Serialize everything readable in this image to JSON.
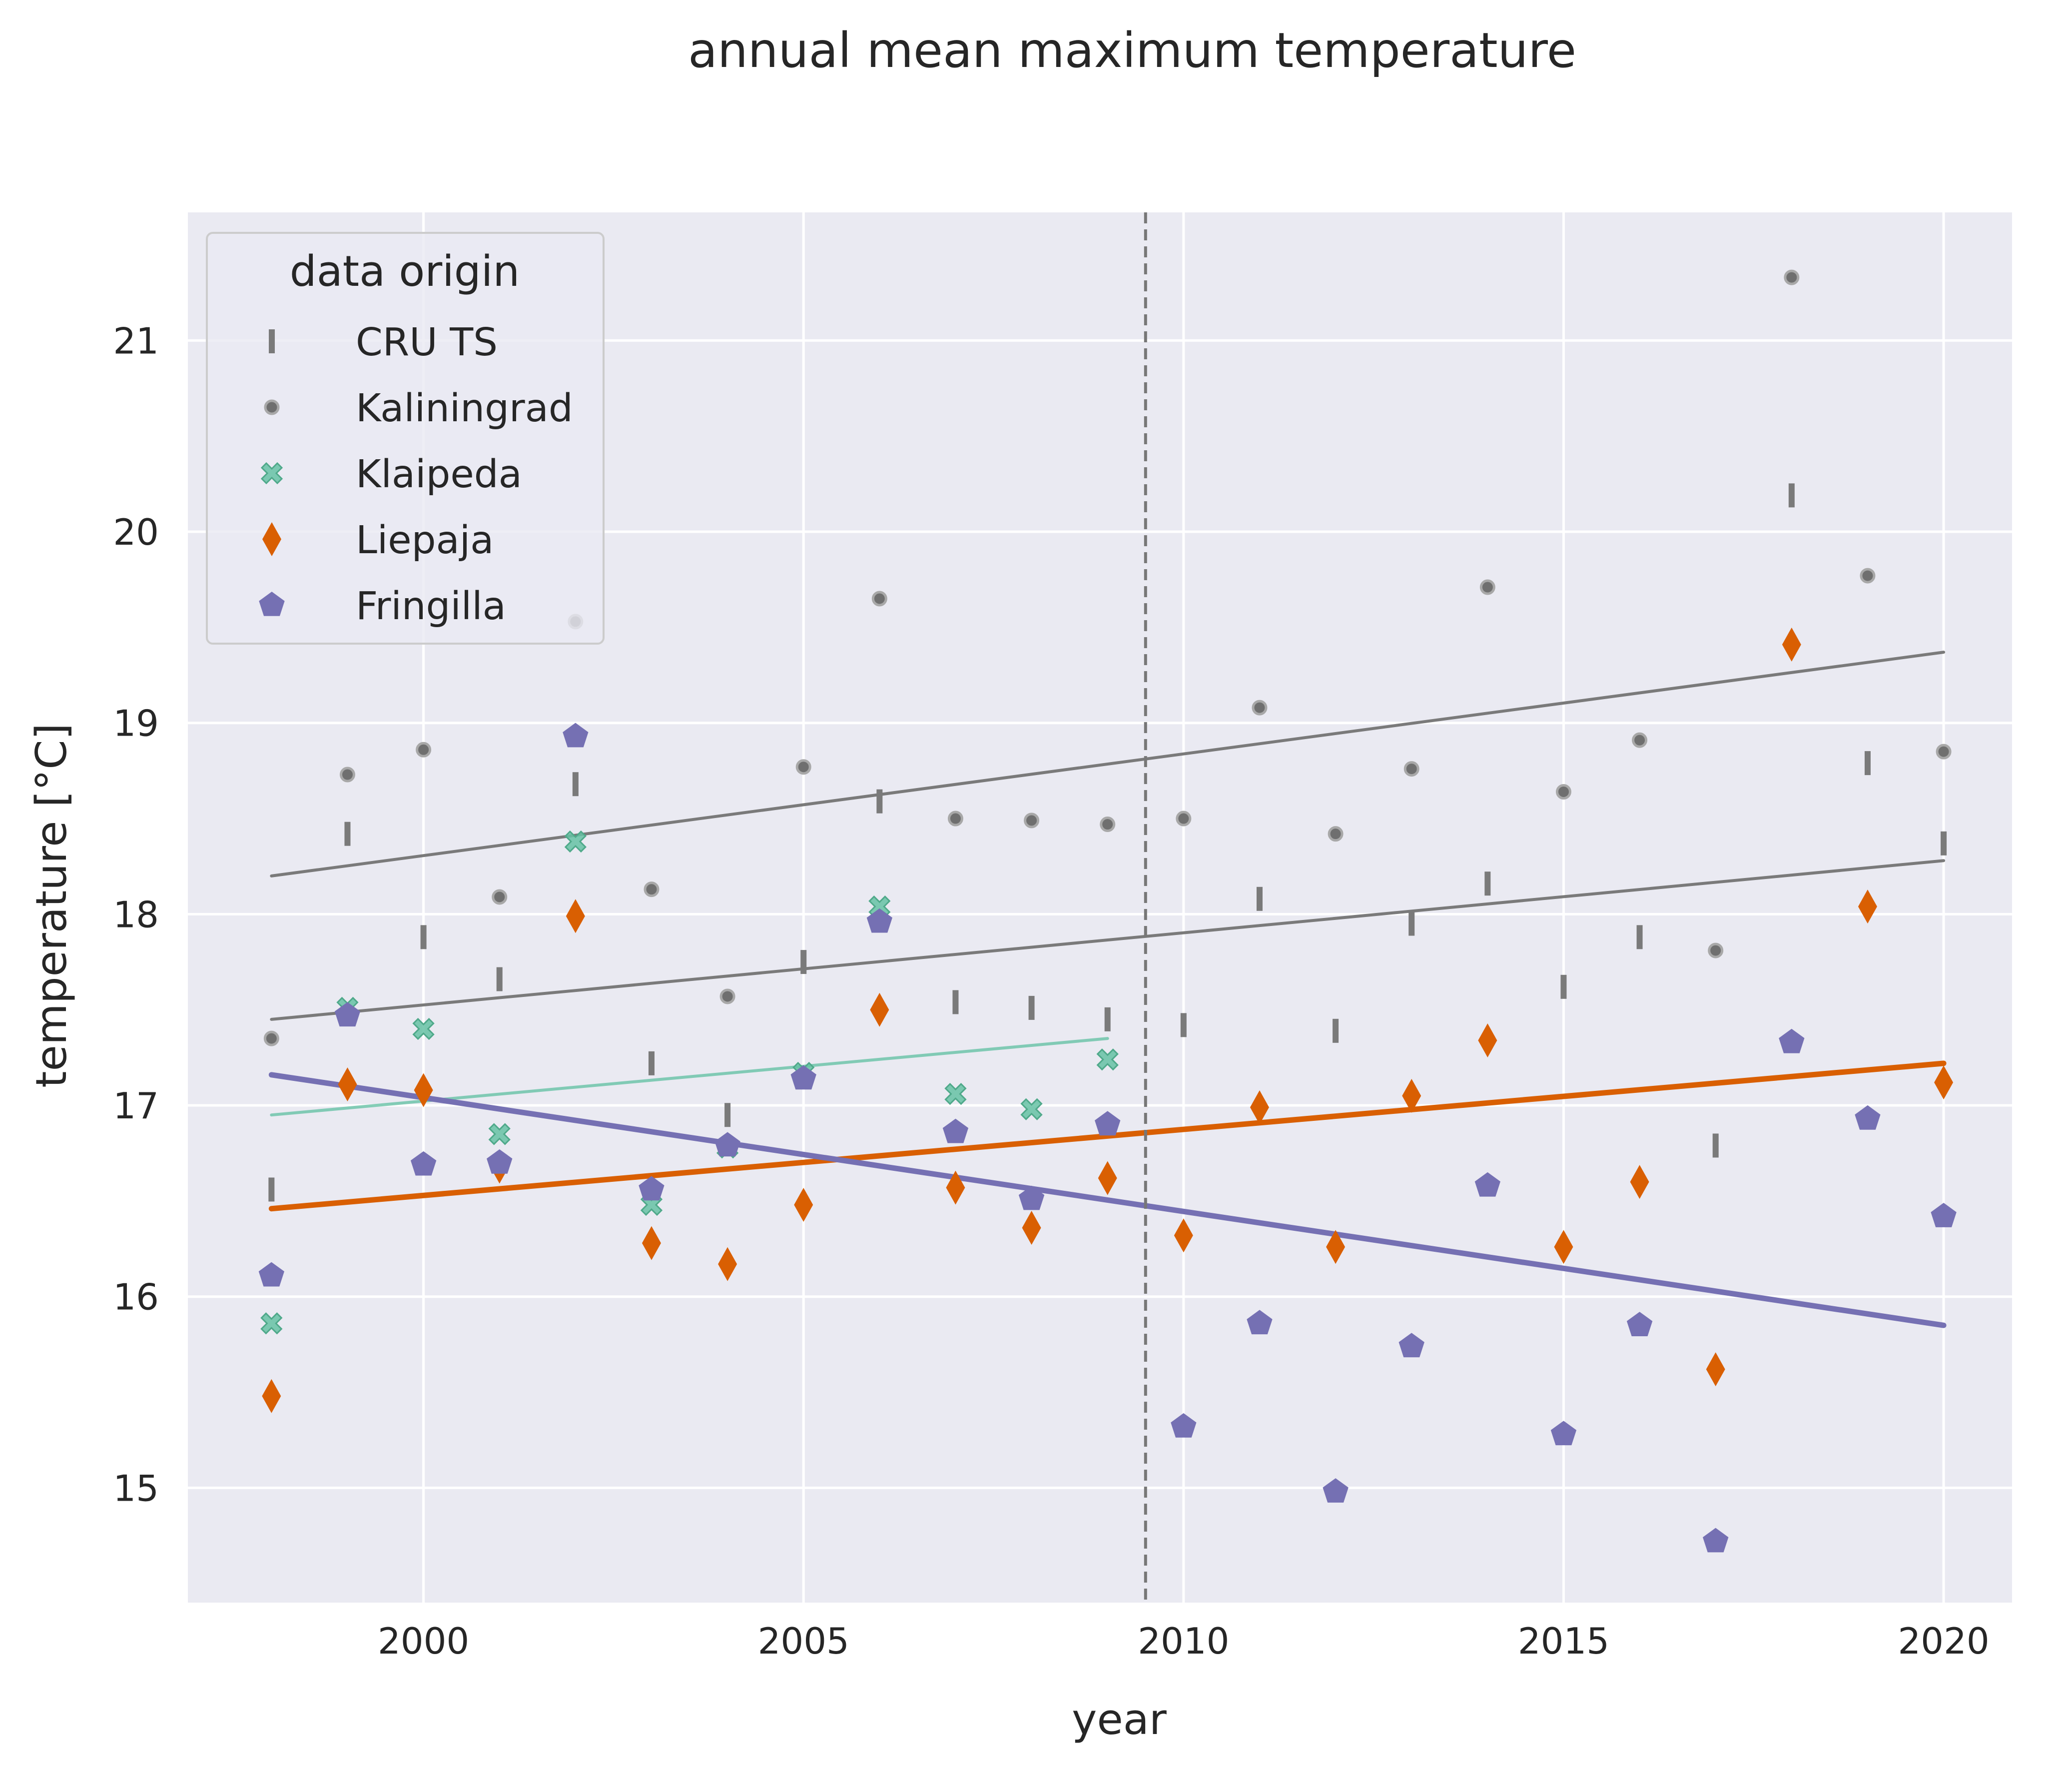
{
  "chart_data": {
    "type": "scatter",
    "title": "annual mean maximum temperature",
    "xlabel": "year",
    "ylabel": "temperature [°C]",
    "xlim": [
      1996.9,
      2020.9
    ],
    "ylim": [
      14.4,
      21.67
    ],
    "x_ticks": [
      2000,
      2005,
      2010,
      2015,
      2020
    ],
    "y_ticks": [
      15,
      16,
      17,
      18,
      19,
      20,
      21
    ],
    "grid": true,
    "legend": {
      "title": "data origin",
      "placement": "top-left"
    },
    "vline": {
      "x": 2009.5,
      "style": "dashed",
      "color": "#777777"
    },
    "series": [
      {
        "name": "CRU TS",
        "marker": "tick",
        "color": "#7a7a7a",
        "x": [
          1998,
          1999,
          2000,
          2001,
          2002,
          2003,
          2004,
          2005,
          2006,
          2007,
          2008,
          2009,
          2010,
          2011,
          2012,
          2013,
          2014,
          2015,
          2016,
          2017,
          2018,
          2019,
          2020
        ],
        "y": [
          16.56,
          18.42,
          17.88,
          17.66,
          18.68,
          17.22,
          16.95,
          17.75,
          18.59,
          17.54,
          17.51,
          17.45,
          17.42,
          18.08,
          17.39,
          17.95,
          18.16,
          17.62,
          17.88,
          16.79,
          20.19,
          18.79,
          18.37
        ],
        "trend": [
          17.45,
          18.28
        ]
      },
      {
        "name": "Kaliningrad",
        "marker": "circle",
        "color": "#8c8c8c",
        "x": [
          1998,
          1999,
          2000,
          2001,
          2002,
          2003,
          2004,
          2005,
          2006,
          2007,
          2008,
          2009,
          2010,
          2011,
          2012,
          2013,
          2014,
          2015,
          2016,
          2017,
          2018,
          2019,
          2020
        ],
        "y": [
          17.35,
          18.73,
          18.86,
          18.09,
          19.53,
          18.13,
          17.57,
          18.77,
          19.65,
          18.5,
          18.49,
          18.47,
          18.5,
          19.08,
          18.42,
          18.76,
          19.71,
          18.64,
          18.91,
          17.81,
          21.33,
          19.77,
          18.85
        ],
        "trend": [
          18.2,
          19.37
        ]
      },
      {
        "name": "Klaipeda",
        "marker": "x",
        "color": "#66c2a5",
        "x": [
          1998,
          1999,
          2000,
          2001,
          2002,
          2003,
          2004,
          2005,
          2006,
          2007,
          2008,
          2009
        ],
        "y": [
          15.86,
          17.51,
          17.4,
          16.85,
          18.38,
          16.48,
          16.78,
          17.17,
          18.04,
          17.06,
          16.98,
          17.24
        ],
        "trend": [
          16.95,
          17.35
        ]
      },
      {
        "name": "Liepaja",
        "marker": "diamond",
        "color": "#d95f02",
        "x": [
          1998,
          1999,
          2000,
          2001,
          2002,
          2003,
          2004,
          2005,
          2006,
          2007,
          2008,
          2009,
          2010,
          2011,
          2012,
          2013,
          2014,
          2015,
          2016,
          2017,
          2018,
          2019,
          2020
        ],
        "y": [
          15.48,
          17.11,
          17.08,
          16.68,
          17.99,
          16.28,
          16.17,
          16.48,
          17.5,
          16.57,
          16.36,
          16.62,
          16.32,
          16.99,
          16.26,
          17.05,
          17.34,
          16.26,
          16.6,
          15.62,
          19.41,
          18.04,
          17.12
        ],
        "trend": [
          16.46,
          17.22
        ]
      },
      {
        "name": "Fringilla",
        "marker": "pentagon",
        "color": "#7570b3",
        "x": [
          1998,
          1999,
          2000,
          2001,
          2002,
          2003,
          2004,
          2005,
          2006,
          2007,
          2008,
          2009,
          2010,
          2011,
          2012,
          2013,
          2014,
          2015,
          2016,
          2017,
          2018,
          2019,
          2020
        ],
        "y": [
          16.11,
          17.47,
          16.69,
          16.7,
          18.93,
          16.56,
          16.79,
          17.14,
          17.96,
          16.86,
          16.51,
          16.9,
          15.32,
          15.86,
          14.98,
          15.74,
          16.58,
          15.28,
          15.85,
          14.72,
          17.33,
          16.93,
          16.42
        ],
        "trend": [
          17.16,
          15.85
        ]
      }
    ]
  }
}
